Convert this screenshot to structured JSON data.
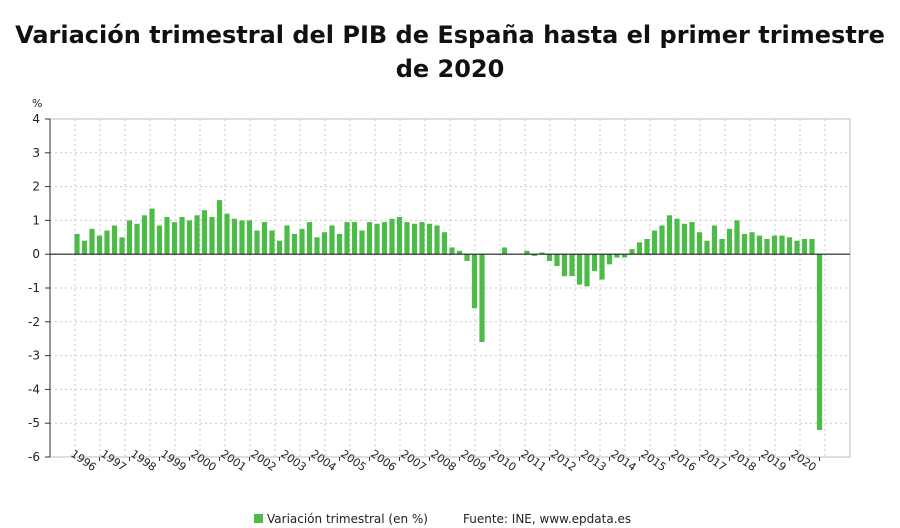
{
  "title": "Variación trimestral del PIB de España hasta el primer trimestre de 2020",
  "colors": {
    "bar": "#4cbb47",
    "grid": "#c8c8c8",
    "axis": "#333333",
    "zero": "#222222"
  },
  "legend": {
    "series_label": "Variación trimestral (en %)",
    "source": "Fuente: INE, www.epdata.es"
  },
  "chart_data": {
    "type": "bar",
    "title": "Variación trimestral del PIB de España hasta el primer trimestre de 2020",
    "ylabel": "%",
    "ylim": [
      -6,
      4
    ],
    "yticks": [
      4,
      3,
      2,
      1,
      0,
      -1,
      -2,
      -3,
      -4,
      -5,
      -6
    ],
    "grid": true,
    "legend_position": "bottom",
    "x_tick_labels": [
      "1996",
      "1997",
      "1998",
      "1999",
      "2000",
      "2001",
      "2002",
      "2003",
      "2004",
      "2005",
      "2006",
      "2007",
      "2008",
      "2009",
      "2010",
      "2011",
      "2012",
      "2013",
      "2014",
      "2015",
      "2016",
      "2017",
      "2018",
      "2019",
      "2020"
    ],
    "series": [
      {
        "name": "Variación trimestral (en %)",
        "values": [
          0.6,
          0.4,
          0.75,
          0.55,
          0.7,
          0.85,
          0.5,
          1.0,
          0.9,
          1.15,
          1.35,
          0.85,
          1.1,
          0.95,
          1.1,
          1.0,
          1.15,
          1.3,
          1.1,
          1.6,
          1.2,
          1.05,
          1.0,
          1.0,
          0.7,
          0.95,
          0.7,
          0.4,
          0.85,
          0.6,
          0.75,
          0.95,
          0.5,
          0.65,
          0.85,
          0.6,
          0.95,
          0.95,
          0.7,
          0.95,
          0.9,
          0.95,
          1.05,
          1.1,
          0.95,
          0.9,
          0.95,
          0.9,
          0.85,
          0.65,
          0.2,
          0.1,
          -0.2,
          -1.6,
          -2.6,
          0.0,
          0.0,
          0.2,
          0.0,
          0.0,
          0.1,
          -0.05,
          0.05,
          -0.2,
          -0.35,
          -0.65,
          -0.65,
          -0.9,
          -0.95,
          -0.5,
          -0.75,
          -0.3,
          -0.1,
          -0.1,
          0.15,
          0.35,
          0.45,
          0.7,
          0.85,
          1.15,
          1.05,
          0.9,
          0.95,
          0.65,
          0.4,
          0.85,
          0.45,
          0.75,
          1.0,
          0.6,
          0.65,
          0.55,
          0.45,
          0.55,
          0.55,
          0.5,
          0.4,
          0.45,
          0.45,
          -5.2
        ]
      }
    ]
  }
}
